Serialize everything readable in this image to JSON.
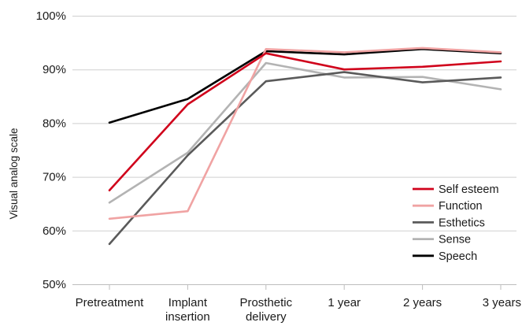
{
  "chart_data": {
    "type": "line",
    "categories": [
      [
        "Pretreatment"
      ],
      [
        "Implant",
        "insertion"
      ],
      [
        "Prosthetic",
        "delivery"
      ],
      [
        "1 year"
      ],
      [
        "2 years"
      ],
      [
        "3 years"
      ]
    ],
    "ylabel": "Visual analog scale",
    "ylim": [
      50,
      100
    ],
    "yticks": [
      50,
      60,
      70,
      80,
      90,
      100
    ],
    "ytick_labels": [
      "50%",
      "60%",
      "70%",
      "80%",
      "90%",
      "100%"
    ],
    "grid": true,
    "legend_position": "right",
    "series": [
      {
        "name": "Self esteem",
        "color": "#d0021b",
        "values": [
          67.5,
          83.5,
          93.0,
          90.0,
          90.5,
          91.5
        ]
      },
      {
        "name": "Function",
        "color": "#f0a3a3",
        "values": [
          62.2,
          63.6,
          93.8,
          93.2,
          94.0,
          93.2
        ]
      },
      {
        "name": "Esthetics",
        "color": "#5a5a5a",
        "values": [
          57.5,
          74.0,
          87.8,
          89.5,
          87.6,
          88.5
        ]
      },
      {
        "name": "Sense",
        "color": "#b3b3b3",
        "values": [
          65.2,
          74.5,
          91.2,
          88.5,
          88.6,
          86.3
        ]
      },
      {
        "name": "Speech",
        "color": "#000000",
        "values": [
          80.1,
          84.5,
          93.4,
          92.8,
          93.8,
          93.0
        ]
      }
    ]
  }
}
